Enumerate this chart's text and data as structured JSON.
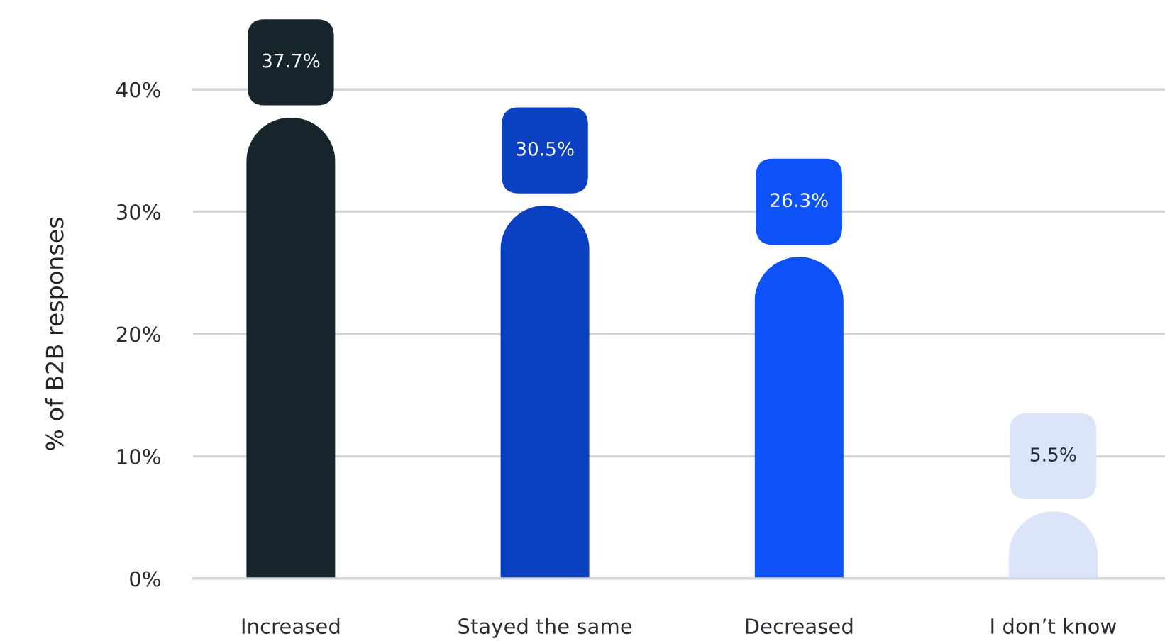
{
  "chart_data": {
    "type": "bar",
    "ylabel": "% of B2B responses",
    "categories": [
      "Increased",
      "Stayed the same",
      "Decreased",
      "I don’t know"
    ],
    "values": [
      37.7,
      30.5,
      26.3,
      5.5
    ],
    "colors": [
      "#15252b",
      "#0b40c3",
      "#0c52f6",
      "#dce4f9"
    ],
    "value_labels": [
      "37.7%",
      "30.5%",
      "26.3%",
      "5.5%"
    ],
    "ylim": [
      0,
      40
    ],
    "yticks": [
      {
        "value": 0,
        "label": "0%"
      },
      {
        "value": 10,
        "label": "10%"
      },
      {
        "value": 20,
        "label": "20%"
      },
      {
        "value": 30,
        "label": "30%"
      },
      {
        "value": 40,
        "label": "40%"
      }
    ],
    "grid": "y"
  }
}
